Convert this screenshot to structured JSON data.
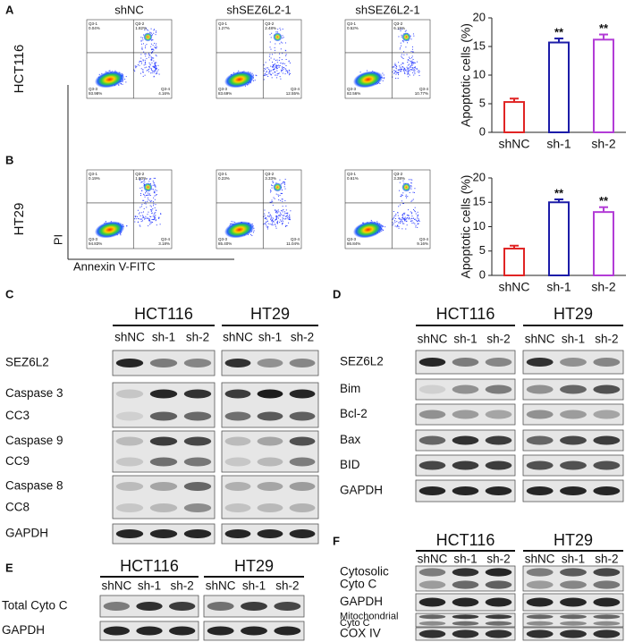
{
  "flow": {
    "rows": [
      {
        "label": "A",
        "name": "HCT116",
        "plots": [
          {
            "title": "shNC",
            "quadrants": [
              {
                "name": "Q3-1",
                "value": "0.04%"
              },
              {
                "name": "Q3-2",
                "value": "1.82%"
              },
              {
                "name": "Q3-3",
                "value": "93.98%"
              },
              {
                "name": "Q3-4",
                "value": "4.16%"
              }
            ]
          },
          {
            "title": "shSEZ6L2-1",
            "quadrants": [
              {
                "name": "Q3-1",
                "value": "1.27%"
              },
              {
                "name": "Q3-2",
                "value": "2.48%"
              },
              {
                "name": "Q3-3",
                "value": "83.69%"
              },
              {
                "name": "Q3-4",
                "value": "12.55%"
              }
            ]
          },
          {
            "title": "shSEZ6L2-1",
            "quadrants": [
              {
                "name": "Q3-1",
                "value": "0.52%"
              },
              {
                "name": "Q3-2",
                "value": "6.15%"
              },
              {
                "name": "Q3-3",
                "value": "82.56%"
              },
              {
                "name": "Q3-4",
                "value": "10.77%"
              }
            ]
          }
        ]
      },
      {
        "label": "B",
        "name": "HT29",
        "plots": [
          {
            "quadrants": [
              {
                "name": "Q3-1",
                "value": "0.19%"
              },
              {
                "name": "Q3-2",
                "value": "1.80%"
              },
              {
                "name": "Q3-3",
                "value": "94.83%"
              },
              {
                "name": "Q3-4",
                "value": "3.18%"
              }
            ]
          },
          {
            "quadrants": [
              {
                "name": "Q3-1",
                "value": "0.23%"
              },
              {
                "name": "Q3-2",
                "value": "3.33%"
              },
              {
                "name": "Q3-3",
                "value": "85.40%"
              },
              {
                "name": "Q3-4",
                "value": "11.04%"
              }
            ]
          },
          {
            "quadrants": [
              {
                "name": "Q3-1",
                "value": "0.61%"
              },
              {
                "name": "Q3-2",
                "value": "3.38%"
              },
              {
                "name": "Q3-3",
                "value": "86.84%"
              },
              {
                "name": "Q3-4",
                "value": "9.16%"
              }
            ]
          }
        ]
      }
    ],
    "y_axis": "PI",
    "x_axis": "Annexin V-FITC"
  },
  "chart_data": [
    {
      "type": "bar",
      "ylabel": "Apoptotic cells (%)",
      "categories": [
        "shNC",
        "sh-1",
        "sh-2"
      ],
      "values": [
        5.3,
        15.7,
        16.2
      ],
      "errors": [
        0.6,
        0.7,
        0.9
      ],
      "significance": [
        null,
        "**",
        "**"
      ],
      "colors": [
        "#e02424",
        "#1c1ca8",
        "#b23cd6"
      ],
      "ylim": [
        0,
        20
      ],
      "yticks": [
        0,
        5,
        10,
        15,
        20
      ]
    },
    {
      "type": "bar",
      "ylabel": "Apoptotic cells (%)",
      "categories": [
        "shNC",
        "sh-1",
        "sh-2"
      ],
      "values": [
        5.5,
        15.0,
        13.0
      ],
      "errors": [
        0.6,
        0.6,
        1.0
      ],
      "significance": [
        null,
        "**",
        "**"
      ],
      "colors": [
        "#e02424",
        "#1c1ca8",
        "#b23cd6"
      ],
      "ylim": [
        0,
        20
      ],
      "yticks": [
        0,
        5,
        10,
        15,
        20
      ]
    }
  ],
  "blots": [
    {
      "label": "C",
      "groups": [
        "HCT116",
        "HT29"
      ],
      "lanes": [
        "shNC",
        "sh-1",
        "sh-2"
      ],
      "rows": [
        {
          "labels": [
            "SEZ6L2"
          ]
        },
        {
          "labels": [
            "Caspase 3",
            "CC3"
          ]
        },
        {
          "labels": [
            "Caspase 9",
            "CC9"
          ]
        },
        {
          "labels": [
            "Caspase 8",
            "CC8"
          ]
        },
        {
          "labels": [
            "GAPDH"
          ]
        }
      ]
    },
    {
      "label": "D",
      "groups": [
        "HCT116",
        "HT29"
      ],
      "lanes": [
        "shNC",
        "sh-1",
        "sh-2"
      ],
      "rows": [
        {
          "labels": [
            "SEZ6L2"
          ]
        },
        {
          "labels": [
            "Bim"
          ]
        },
        {
          "labels": [
            "Bcl-2"
          ]
        },
        {
          "labels": [
            "Bax"
          ]
        },
        {
          "labels": [
            "BID"
          ]
        },
        {
          "labels": [
            "GAPDH"
          ]
        }
      ]
    },
    {
      "label": "E",
      "groups": [
        "HCT116",
        "HT29"
      ],
      "lanes": [
        "shNC",
        "sh-1",
        "sh-2"
      ],
      "rows": [
        {
          "labels": [
            "Total Cyto C"
          ]
        },
        {
          "labels": [
            "GAPDH"
          ]
        }
      ]
    },
    {
      "label": "F",
      "groups": [
        "HCT116",
        "HT29"
      ],
      "lanes": [
        "shNC",
        "sh-1",
        "sh-2"
      ],
      "rows": [
        {
          "labels": [
            "Cytosolic",
            "Cyto C"
          ]
        },
        {
          "labels": [
            "GAPDH"
          ]
        },
        {
          "labels": [
            "Mitochondrial",
            "Cyto C"
          ]
        },
        {
          "labels": [
            "COX IV"
          ]
        }
      ]
    }
  ]
}
